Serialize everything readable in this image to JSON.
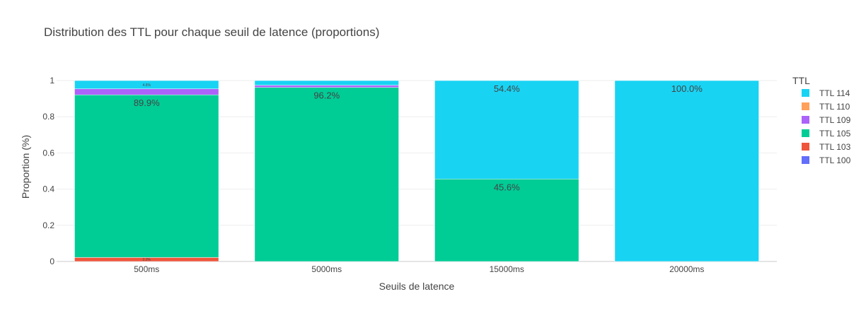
{
  "chart_data": {
    "type": "bar",
    "stacked": true,
    "title": "Distribution des TTL pour chaque seuil de latence (proportions)",
    "xlabel": "Seuils de latence",
    "ylabel": "Proportion (%)",
    "categories": [
      "500ms",
      "5000ms",
      "15000ms",
      "20000ms"
    ],
    "ylim": [
      0,
      1
    ],
    "yticks": [
      {
        "value": 0,
        "label": "0"
      },
      {
        "value": 0.2,
        "label": "0.2"
      },
      {
        "value": 0.4,
        "label": "0.4"
      },
      {
        "value": 0.6,
        "label": "0.6"
      },
      {
        "value": 0.8,
        "label": "0.8"
      },
      {
        "value": 1,
        "label": "1"
      }
    ],
    "grid": true,
    "legend_title": "TTL",
    "legend_position": "right",
    "series": [
      {
        "name": "TTL 100",
        "color": "#636efa",
        "values": [
          0,
          0,
          0,
          0
        ],
        "labels": [
          "",
          "",
          "",
          ""
        ]
      },
      {
        "name": "TTL 103",
        "color": "#ef553b",
        "values": [
          0.022,
          0,
          0,
          0
        ],
        "labels": [
          "2.2%",
          "",
          "",
          ""
        ]
      },
      {
        "name": "TTL 105",
        "color": "#00cc96",
        "values": [
          0.899,
          0.962,
          0.456,
          0
        ],
        "labels": [
          "89.9%",
          "96.2%",
          "45.6%",
          ""
        ]
      },
      {
        "name": "TTL 109",
        "color": "#ab63fa",
        "values": [
          0.033,
          0.012,
          0,
          0
        ],
        "labels": [
          "",
          "",
          "",
          ""
        ]
      },
      {
        "name": "TTL 110",
        "color": "#ffa15a",
        "values": [
          0,
          0,
          0,
          0
        ],
        "labels": [
          "",
          "",
          "",
          ""
        ]
      },
      {
        "name": "TTL 114",
        "color": "#19d3f3",
        "values": [
          0.046,
          0.026,
          0.544,
          1.0
        ],
        "labels": [
          "4.6%",
          "",
          "54.4%",
          "100.0%"
        ]
      }
    ]
  }
}
